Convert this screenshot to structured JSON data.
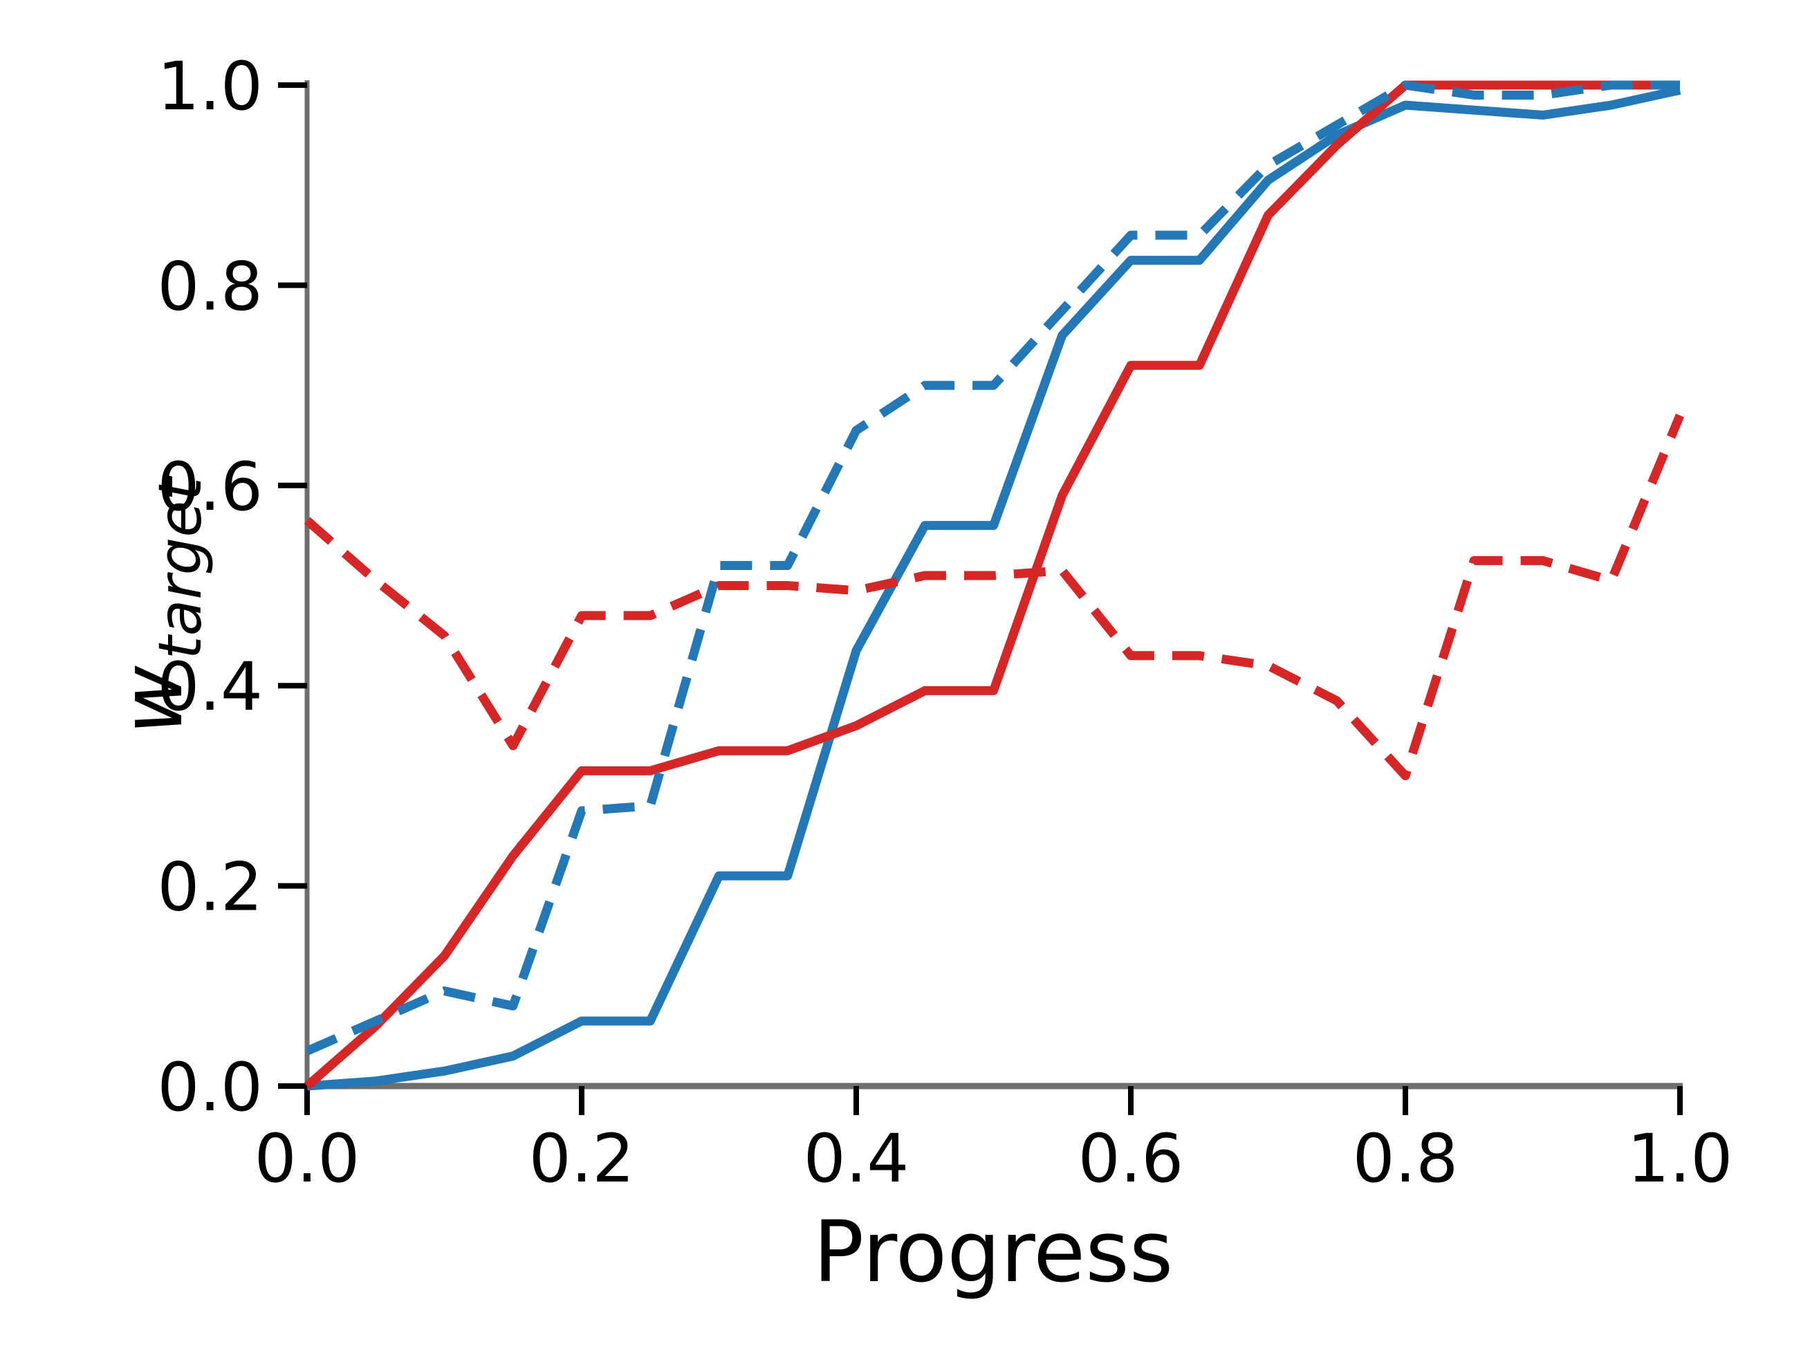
{
  "figure": {
    "xlabel": "Progress",
    "ylabel_main": "w",
    "ylabel_sub": "target",
    "background": "#ffffff",
    "spine_color": "#6e6e6e",
    "tick_color": "#000000"
  },
  "chart_data": {
    "type": "line",
    "title": "",
    "xlabel": "Progress",
    "ylabel": "w_target",
    "xlim": [
      0.0,
      1.0
    ],
    "ylim": [
      0.0,
      1.0
    ],
    "grid": false,
    "legend_position": "none",
    "x_tick_labels": [
      "0.0",
      "0.2",
      "0.4",
      "0.6",
      "0.8",
      "1.0"
    ],
    "x_tick_values": [
      0.0,
      0.2,
      0.4,
      0.6,
      0.8,
      1.0
    ],
    "y_tick_labels": [
      "0.0",
      "0.2",
      "0.4",
      "0.6",
      "0.8",
      "1.0"
    ],
    "y_tick_values": [
      0.0,
      0.2,
      0.4,
      0.6,
      0.8,
      1.0
    ],
    "x": [
      0.0,
      0.05,
      0.1,
      0.15,
      0.2,
      0.25,
      0.3,
      0.35,
      0.4,
      0.45,
      0.5,
      0.55,
      0.6,
      0.65,
      0.7,
      0.75,
      0.8,
      0.85,
      0.9,
      0.95,
      1.0
    ],
    "series": [
      {
        "name": "blue-solid",
        "color": "#2478b5",
        "style": "solid",
        "values": [
          0.0,
          0.005,
          0.015,
          0.03,
          0.065,
          0.065,
          0.21,
          0.21,
          0.435,
          0.56,
          0.56,
          0.75,
          0.825,
          0.825,
          0.905,
          0.95,
          0.98,
          0.975,
          0.97,
          0.98,
          0.995
        ]
      },
      {
        "name": "red-solid",
        "color": "#d62728",
        "style": "solid",
        "values": [
          0.0,
          0.06,
          0.13,
          0.23,
          0.315,
          0.315,
          0.335,
          0.335,
          0.36,
          0.395,
          0.395,
          0.59,
          0.72,
          0.72,
          0.87,
          0.94,
          1.0,
          1.0,
          1.0,
          1.0,
          1.0
        ]
      },
      {
        "name": "blue-dashed",
        "color": "#2478b5",
        "style": "dashed",
        "values": [
          0.035,
          0.065,
          0.095,
          0.08,
          0.275,
          0.28,
          0.52,
          0.52,
          0.655,
          0.7,
          0.7,
          0.775,
          0.85,
          0.85,
          0.92,
          0.96,
          1.0,
          0.99,
          0.99,
          1.0,
          1.0
        ]
      },
      {
        "name": "red-dashed",
        "color": "#d62728",
        "style": "dashed",
        "values": [
          0.565,
          0.505,
          0.45,
          0.34,
          0.47,
          0.47,
          0.5,
          0.5,
          0.495,
          0.51,
          0.51,
          0.515,
          0.43,
          0.43,
          0.42,
          0.385,
          0.31,
          0.525,
          0.525,
          0.505,
          0.67
        ]
      }
    ]
  }
}
